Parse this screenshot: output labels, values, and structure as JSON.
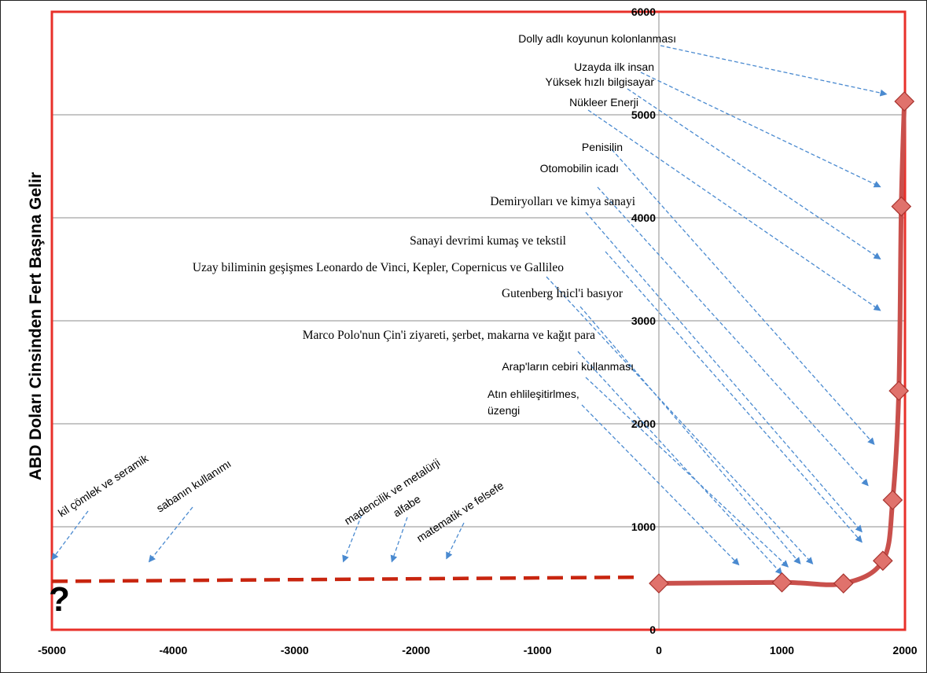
{
  "chart_data": {
    "type": "line",
    "title": "",
    "xlabel": "",
    "ylabel": "ABD Doları Cinsinden Fert Başına Gelir",
    "xlim": [
      -5000,
      2000
    ],
    "ylim": [
      0,
      6000
    ],
    "x_ticks": [
      "-5000",
      "-4000",
      "-3000",
      "-2000",
      "-1000",
      "0",
      "1000",
      "2000"
    ],
    "y_ticks": [
      "0",
      "1000",
      "2000",
      "3000",
      "4000",
      "5000",
      "6000"
    ],
    "grid": "horizontal",
    "colors": {
      "frame": "#e8302a",
      "series": "#c9504c",
      "markers": "#e0726c",
      "dashed_line": "#c8250f",
      "arrows": "#4a8ad0",
      "grid": "#8c8c8c"
    },
    "series": [
      {
        "points": [
          {
            "x": 0,
            "y": 450
          },
          {
            "x": 1000,
            "y": 460
          },
          {
            "x": 1500,
            "y": 450
          },
          {
            "x": 1820,
            "y": 670
          },
          {
            "x": 1900,
            "y": 1260
          },
          {
            "x": 1950,
            "y": 2320
          },
          {
            "x": 1970,
            "y": 4110
          },
          {
            "x": 1995,
            "y": 5130
          }
        ]
      }
    ],
    "dashed_series": {
      "points": [
        {
          "x": -5000,
          "y": 470
        },
        {
          "x": -200,
          "y": 510
        }
      ]
    },
    "unknown_marker": "?",
    "annotations": [
      {
        "text": "Dolly adlı koyunun kolonlanması",
        "target": {
          "x": 1850,
          "y": 5200
        }
      },
      {
        "text": "Uzayda ilk insan",
        "target": {
          "x": 1800,
          "y": 4300
        }
      },
      {
        "text": "Yüksek hızlı bilgisayar",
        "target": {
          "x": 1800,
          "y": 3600
        }
      },
      {
        "text": "Nükleer Enerji",
        "target": {
          "x": 1800,
          "y": 3100
        }
      },
      {
        "text": "Penisilin",
        "target": {
          "x": 1750,
          "y": 1800
        }
      },
      {
        "text": "Otomobilin icadı",
        "target": {
          "x": 1700,
          "y": 1400
        }
      },
      {
        "text": "Demiryolları ve kimya sanayi",
        "target": {
          "x": 1650,
          "y": 950
        }
      },
      {
        "text": "Sanayi devrimi kumaş ve tekstil",
        "target": {
          "x": 1650,
          "y": 850
        }
      },
      {
        "text": "Uzay biliminin geşişmes Leonardo de Vinci, Kepler, Copernicus ve Gallileo",
        "target": {
          "x": 1250,
          "y": 640
        }
      },
      {
        "text": "Gutenberg İnicl'i basıyor",
        "target": {
          "x": 1150,
          "y": 640
        }
      },
      {
        "text": "Marco Polo'nun Çin'i ziyareti, şerbet, makarna ve kağıt para",
        "target": {
          "x": 1000,
          "y": 540
        }
      },
      {
        "text": "Arap'ların cebiri kullanması",
        "target": {
          "x": 1050,
          "y": 610
        }
      },
      {
        "text": "Atın ehlileşitirlmes,",
        "text2": "üzengi",
        "target": {
          "x": 650,
          "y": 630
        }
      },
      {
        "text": "kil çömlek ve seramik",
        "target": {
          "x": -5000,
          "y": 680
        }
      },
      {
        "text": "sabanın kullanımı",
        "target": {
          "x": -4200,
          "y": 660
        }
      },
      {
        "text": "madencilik ve metalürji",
        "target": {
          "x": -2600,
          "y": 660
        }
      },
      {
        "text": "alfabe",
        "target": {
          "x": -2200,
          "y": 660
        }
      },
      {
        "text": "matematik ve felsefe",
        "target": {
          "x": -1750,
          "y": 690
        }
      }
    ]
  }
}
